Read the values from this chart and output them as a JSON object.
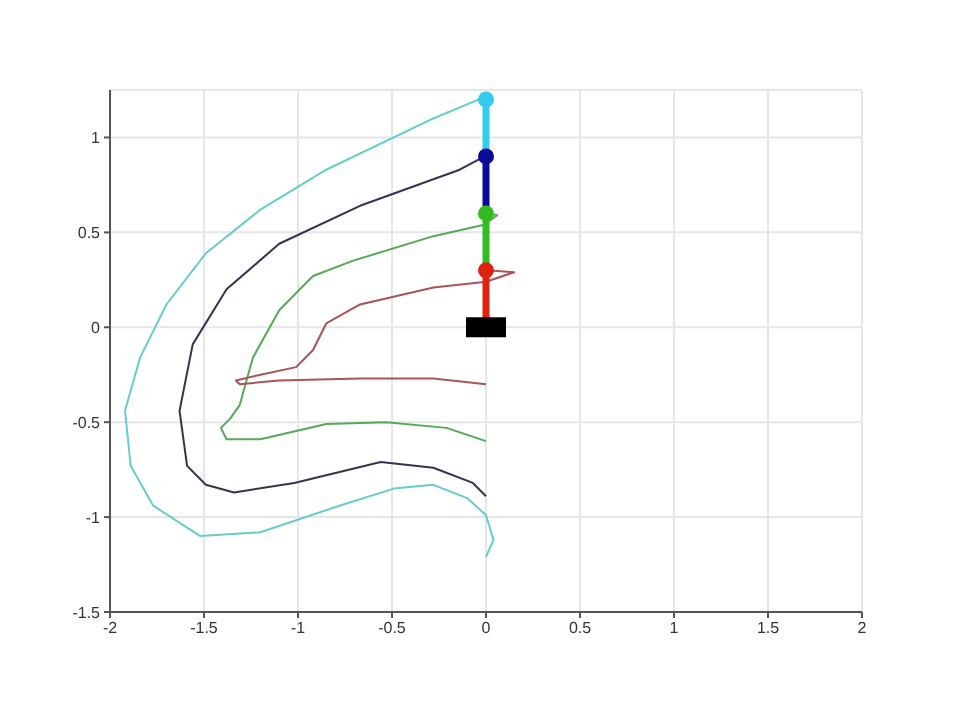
{
  "chart_data": {
    "type": "line",
    "xlim": [
      -2,
      2
    ],
    "ylim": [
      -1.5,
      1.25
    ],
    "xticks": [
      -2,
      -1.5,
      -1,
      -0.5,
      0,
      0.5,
      1,
      1.5,
      2
    ],
    "yticks": [
      -1.5,
      -1,
      -0.5,
      0,
      0.5,
      1
    ],
    "grid": true,
    "legend": false,
    "series": [
      {
        "color": "#66cccc",
        "marker": "none",
        "x": [
          0.01,
          -0.28,
          -0.85,
          -1.2,
          -1.49,
          -1.7,
          -1.84,
          -1.92,
          -1.89,
          -1.77,
          -1.52,
          -1.2,
          -0.78,
          -0.49,
          -0.28,
          -0.1,
          0,
          0.04,
          0
        ],
        "values": [
          1.22,
          1.1,
          0.83,
          0.62,
          0.39,
          0.12,
          -0.16,
          -0.44,
          -0.73,
          -0.94,
          -1.1,
          -1.08,
          -0.94,
          -0.85,
          -0.83,
          -0.9,
          -0.99,
          -1.12,
          -1.21
        ]
      },
      {
        "color": "#333355",
        "marker": "none",
        "x": [
          0.01,
          -0.14,
          -0.67,
          -1.1,
          -1.38,
          -1.56,
          -1.63,
          -1.59,
          -1.49,
          -1.34,
          -1.02,
          -0.56,
          -0.28,
          -0.07,
          0
        ],
        "values": [
          0.91,
          0.83,
          0.64,
          0.44,
          0.2,
          -0.09,
          -0.44,
          -0.73,
          -0.83,
          -0.87,
          -0.82,
          -0.71,
          -0.74,
          -0.82,
          -0.89
        ]
      },
      {
        "color": "#55aa55",
        "marker": "none",
        "x": [
          0.01,
          0.06,
          -0.01,
          -0.28,
          -0.71,
          -0.92,
          -1.1,
          -1.24,
          -1.31,
          -1.36,
          -1.41,
          -1.38,
          -1.2,
          -0.85,
          -0.53,
          -0.21,
          0
        ],
        "values": [
          0.6,
          0.59,
          0.54,
          0.48,
          0.35,
          0.27,
          0.09,
          -0.16,
          -0.41,
          -0.48,
          -0.53,
          -0.59,
          -0.59,
          -0.51,
          -0.5,
          -0.53,
          -0.6
        ]
      },
      {
        "color": "#aa5555",
        "marker": "none",
        "x": [
          0.01,
          0.15,
          0,
          -0.28,
          -0.67,
          -0.85,
          -0.92,
          -1.01,
          -1.2,
          -1.33,
          -1.31,
          -1.1,
          -0.67,
          -0.28,
          0
        ],
        "values": [
          0.3,
          0.29,
          0.24,
          0.21,
          0.12,
          0.02,
          -0.12,
          -0.21,
          -0.25,
          -0.28,
          -0.3,
          -0.28,
          -0.27,
          -0.27,
          -0.3
        ]
      },
      {
        "color": "#dd2211",
        "marker": "circle",
        "x": [
          0,
          0
        ],
        "values": [
          0,
          0.3
        ]
      },
      {
        "color": "#33bb22",
        "marker": "circle",
        "x": [
          0,
          0
        ],
        "values": [
          0.3,
          0.6
        ]
      },
      {
        "color": "#0a0a99",
        "marker": "circle",
        "x": [
          0,
          0
        ],
        "values": [
          0.6,
          0.9
        ]
      },
      {
        "color": "#33ccee",
        "marker": "circle",
        "x": [
          0,
          0
        ],
        "values": [
          0.9,
          1.2
        ]
      },
      {
        "type": "scatter",
        "color": "#000000",
        "marker": "square",
        "x": [
          0
        ],
        "values": [
          0
        ]
      }
    ]
  }
}
